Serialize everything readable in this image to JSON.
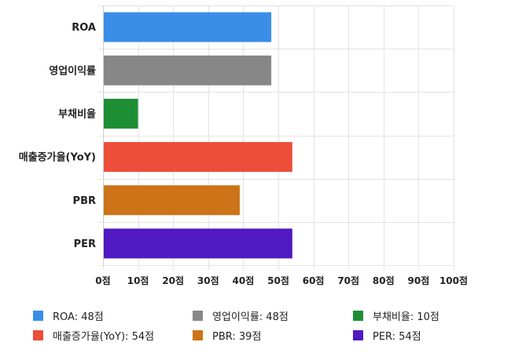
{
  "chart_data": {
    "type": "bar",
    "orientation": "horizontal",
    "categories": [
      "ROA",
      "영업이익률",
      "부채비율",
      "매출증가율(YoY)",
      "PBR",
      "PER"
    ],
    "values": [
      48,
      48,
      10,
      54,
      39,
      54
    ],
    "colors": [
      "#3b8ee8",
      "#878787",
      "#1e8e35",
      "#ec4e3a",
      "#cc7417",
      "#5019c1"
    ],
    "xlim": [
      0,
      100
    ],
    "xticks": [
      0,
      10,
      20,
      30,
      40,
      50,
      60,
      70,
      80,
      90,
      100
    ],
    "tick_suffix": "점",
    "tick_labels": [
      "0점",
      "10점",
      "20점",
      "30점",
      "40점",
      "50점",
      "60점",
      "70점",
      "80점",
      "90점",
      "100점"
    ],
    "grid": true,
    "legend_position": "bottom",
    "legend": [
      {
        "label": "ROA: 48점",
        "color": "#3b8ee8"
      },
      {
        "label": "영업이익률: 48점",
        "color": "#878787"
      },
      {
        "label": "부채비율: 10점",
        "color": "#1e8e35"
      },
      {
        "label": "매출증가율(YoY): 54점",
        "color": "#ec4e3a"
      },
      {
        "label": "PBR: 39점",
        "color": "#cc7417"
      },
      {
        "label": "PER: 54점",
        "color": "#5019c1"
      }
    ]
  }
}
